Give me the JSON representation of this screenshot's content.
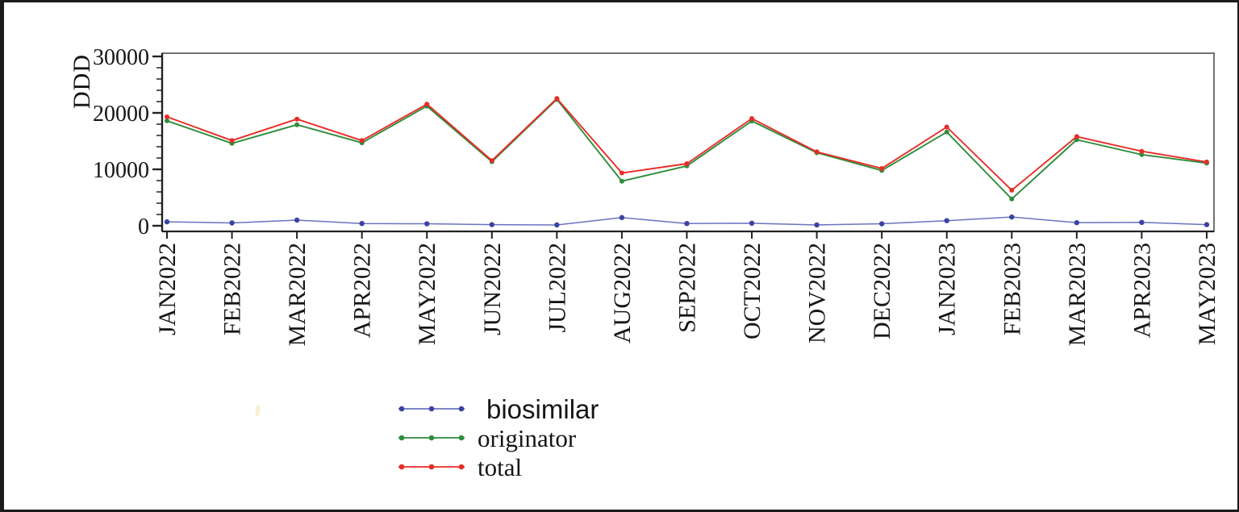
{
  "figure": {
    "background": "#ffffff",
    "border_color": "#1b1b1b",
    "axis_color": "#222222",
    "frame_color": "#4f4f4f",
    "text_color": "#161616"
  },
  "chart_data": {
    "type": "line",
    "title": "",
    "xlabel": "",
    "ylabel": "DDD",
    "ylim": [
      0,
      30000
    ],
    "yticks": [
      0,
      10000,
      20000,
      30000
    ],
    "ytick_labels": [
      "0",
      "10000",
      "20000",
      "30000"
    ],
    "y_minor_tick_interval": 2000,
    "grid": false,
    "legend_position": "bottom",
    "categories": [
      "JAN2022",
      "FEB2022",
      "MAR2022",
      "APR2022",
      "MAY2022",
      "JUN2022",
      "JUL2022",
      "AUG2022",
      "SEP2022",
      "OCT2022",
      "NOV2022",
      "DEC2022",
      "JAN2023",
      "FEB2023",
      "MAR2023",
      "APR2023",
      "MAY2023"
    ],
    "series": [
      {
        "name": "biosimilar",
        "color": "#3a43a3",
        "line_color": "#6b72bf",
        "values": [
          700,
          500,
          1000,
          400,
          350,
          200,
          150,
          1450,
          400,
          450,
          150,
          350,
          900,
          1550,
          550,
          600,
          200
        ]
      },
      {
        "name": "originator",
        "color": "#2f8c3c",
        "line_color": "#2f8c3c",
        "values": [
          18600,
          14600,
          17900,
          14700,
          21200,
          11350,
          22400,
          7900,
          10600,
          18550,
          12950,
          9800,
          16600,
          4750,
          15250,
          12600,
          11100
        ]
      },
      {
        "name": "total",
        "color": "#e82c27",
        "line_color": "#e82c27",
        "values": [
          19300,
          15100,
          18900,
          15100,
          21550,
          11550,
          22550,
          9350,
          11000,
          19000,
          13100,
          10150,
          17500,
          6300,
          15800,
          13200,
          11300
        ]
      }
    ]
  }
}
